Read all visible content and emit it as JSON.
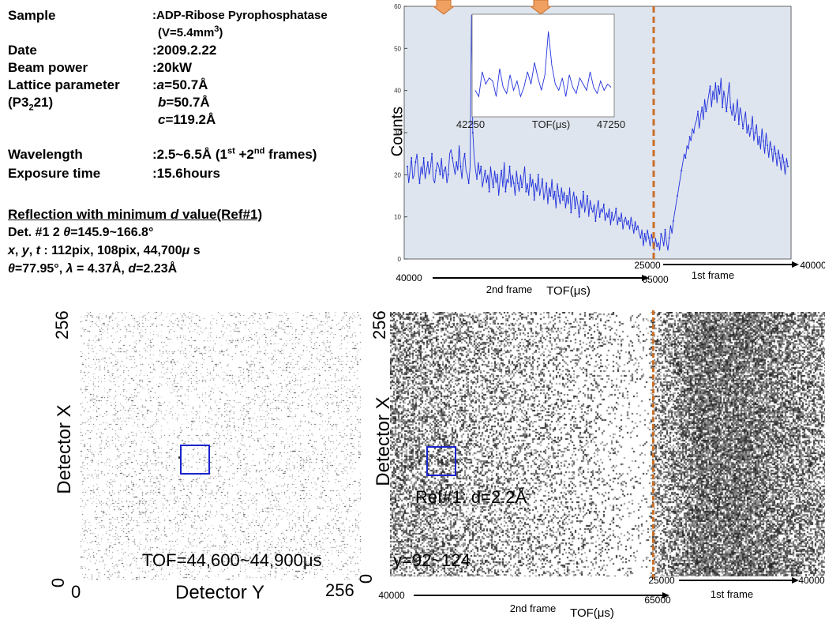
{
  "info": {
    "sample_label": "Sample",
    "sample_value": ":ADP-Ribose Pyrophosphatase",
    "volume_prefix": "(V=5.4mm",
    "volume_exp": "3",
    "volume_suffix": ")",
    "date_label": "Date",
    "date_value": ":2009.2.22",
    "beam_label": "Beam power",
    "beam_value": ":20kW",
    "lattice_label": "Lattice parameter",
    "lattice_a_prefix": ":",
    "lattice_a_var": "a",
    "lattice_a_value": "=50.7Å",
    "space_group_prefix": "(P3",
    "space_group_sub": "2",
    "space_group_suffix": "21)",
    "lattice_b_var": "b",
    "lattice_b_value": "=50.7Å",
    "lattice_c_var": "c",
    "lattice_c_value": "=119.2Å",
    "wavelength_label": "Wavelength",
    "wavelength_value": ":2.5~6.5Å (1",
    "wavelength_sup1": "st",
    "wavelength_mid": " +2",
    "wavelength_sup2": "nd",
    "wavelength_end": " frames)",
    "exposure_label": "Exposure time",
    "exposure_value": ":15.6hours"
  },
  "reflection": {
    "heading_a": "Reflection with minimum ",
    "heading_var": "d",
    "heading_b": " value(Ref#1)",
    "line1_a": "Det. #1 2 ",
    "line1_sym": "θ",
    "line1_b": "=145.9~166.8°",
    "line2_x": "x",
    "line2_sep1": ", ",
    "line2_y": "y",
    "line2_sep2": ", ",
    "line2_t": "t",
    "line2_b": " : 112pix, 108pix, 44,700",
    "line2_mu": "μ",
    "line2_c": " s",
    "line3_theta": "θ",
    "line3_a": "=77.95°, ",
    "line3_lambda": "λ",
    "line3_b": " = 4.37Å, ",
    "line3_d": "d",
    "line3_c": "=2.23Å"
  },
  "colors": {
    "series": "#2233dd",
    "frame_divider": "#c8702a",
    "highlight_box": "#1a22cc",
    "plot_bg": "#dfe5ee",
    "marker": "#f0a060"
  },
  "chart_data": [
    {
      "type": "line",
      "ylabel": "Counts",
      "ylim": [
        0,
        60
      ],
      "yticks": [
        "0",
        "10",
        "20",
        "30",
        "40",
        "50",
        "60"
      ],
      "grid": false,
      "series": [
        {
          "values": [
            22,
            18,
            21,
            24,
            19,
            20,
            23,
            25,
            21,
            18,
            22,
            20,
            24,
            19,
            21,
            23,
            20,
            22,
            25,
            19,
            18,
            21,
            23,
            22,
            20,
            24,
            19,
            21,
            22,
            18,
            20,
            25,
            26,
            24,
            22,
            20,
            23,
            21,
            27,
            22,
            19,
            23,
            25,
            21,
            20,
            18,
            22,
            58,
            30,
            24,
            21,
            19,
            23,
            20,
            22,
            17,
            19,
            21,
            18,
            20,
            16,
            22,
            19,
            17,
            21,
            18,
            20,
            15,
            19,
            21,
            17,
            23,
            16,
            19,
            18,
            22,
            17,
            20,
            18,
            15,
            21,
            18,
            16,
            20,
            17,
            19,
            22,
            16,
            18,
            15,
            20,
            17,
            19,
            14,
            18,
            16,
            20,
            15,
            17,
            19,
            14,
            16,
            18,
            13,
            17,
            15,
            19,
            14,
            16,
            12,
            18,
            15,
            13,
            17,
            14,
            16,
            12,
            15,
            13,
            17,
            11,
            14,
            16,
            12,
            15,
            13,
            10,
            14,
            12,
            16,
            11,
            13,
            15,
            10,
            14,
            12,
            11,
            13,
            9,
            12,
            14,
            10,
            12,
            11,
            13,
            9,
            11,
            10,
            12,
            8,
            11,
            9,
            10,
            12,
            8,
            10,
            9,
            11,
            7,
            9,
            10,
            8,
            9,
            7,
            10,
            8,
            6,
            9,
            7,
            8,
            6,
            5,
            7,
            3,
            6,
            4,
            7,
            5,
            3,
            6,
            4,
            2,
            5,
            3,
            4,
            2,
            6,
            5,
            3,
            7,
            4,
            2,
            5,
            8,
            6,
            9,
            11,
            13,
            15,
            17,
            19,
            21,
            23,
            25,
            24,
            27,
            26,
            29,
            28,
            31,
            30,
            32,
            33,
            35,
            31,
            34,
            36,
            33,
            38,
            35,
            37,
            39,
            41,
            36,
            40,
            38,
            42,
            37,
            41,
            39,
            43,
            36,
            40,
            38,
            35,
            39,
            42,
            36,
            34,
            37,
            33,
            35,
            38,
            32,
            36,
            34,
            31,
            33,
            35,
            30,
            32,
            29,
            31,
            34,
            28,
            30,
            32,
            27,
            29,
            26,
            31,
            28,
            25,
            30,
            27,
            24,
            28,
            26,
            23,
            27,
            25,
            22,
            26,
            24,
            21,
            25,
            23,
            20,
            24,
            22
          ]
        }
      ],
      "inset": {
        "xtick_labels": [
          "42250",
          "47250"
        ],
        "xlabel": "TOF(μs)",
        "values": [
          24,
          22,
          30,
          26,
          28,
          27,
          22,
          31,
          25,
          23,
          29,
          24,
          27,
          22,
          25,
          30,
          26,
          33,
          28,
          24,
          29,
          43,
          32,
          26,
          24,
          28,
          22,
          29,
          25,
          23,
          28,
          26,
          24,
          30,
          25,
          23,
          27,
          24,
          26,
          25
        ]
      },
      "axis_annotation": {
        "top_start": "25000",
        "top_end": "40000",
        "top_label": "1st frame",
        "bottom_start": "40000",
        "bottom_end": "65000",
        "bottom_label": "2nd frame",
        "xlabel": "TOF(μs)"
      }
    },
    {
      "type": "heatmap",
      "xlabel": "Detector Y",
      "ylabel": "Detector X",
      "x_ticks": [
        "0",
        "256"
      ],
      "y_ticks": [
        "0",
        "256"
      ],
      "annotation": "TOF=44,600~44,900μs",
      "density": 0.18
    },
    {
      "type": "heatmap",
      "ylabel": "Detector X",
      "y_ticks": [
        "0",
        "256"
      ],
      "annotations": [
        "Ref#1: d=2.2Å",
        "y=92~124"
      ],
      "axis_annotation": {
        "top_start": "25000",
        "top_end": "40000",
        "top_label": "1st frame",
        "bottom_start": "40000",
        "bottom_end": "65000",
        "bottom_label": "2nd frame",
        "xlabel": "TOF(μs)"
      }
    }
  ]
}
